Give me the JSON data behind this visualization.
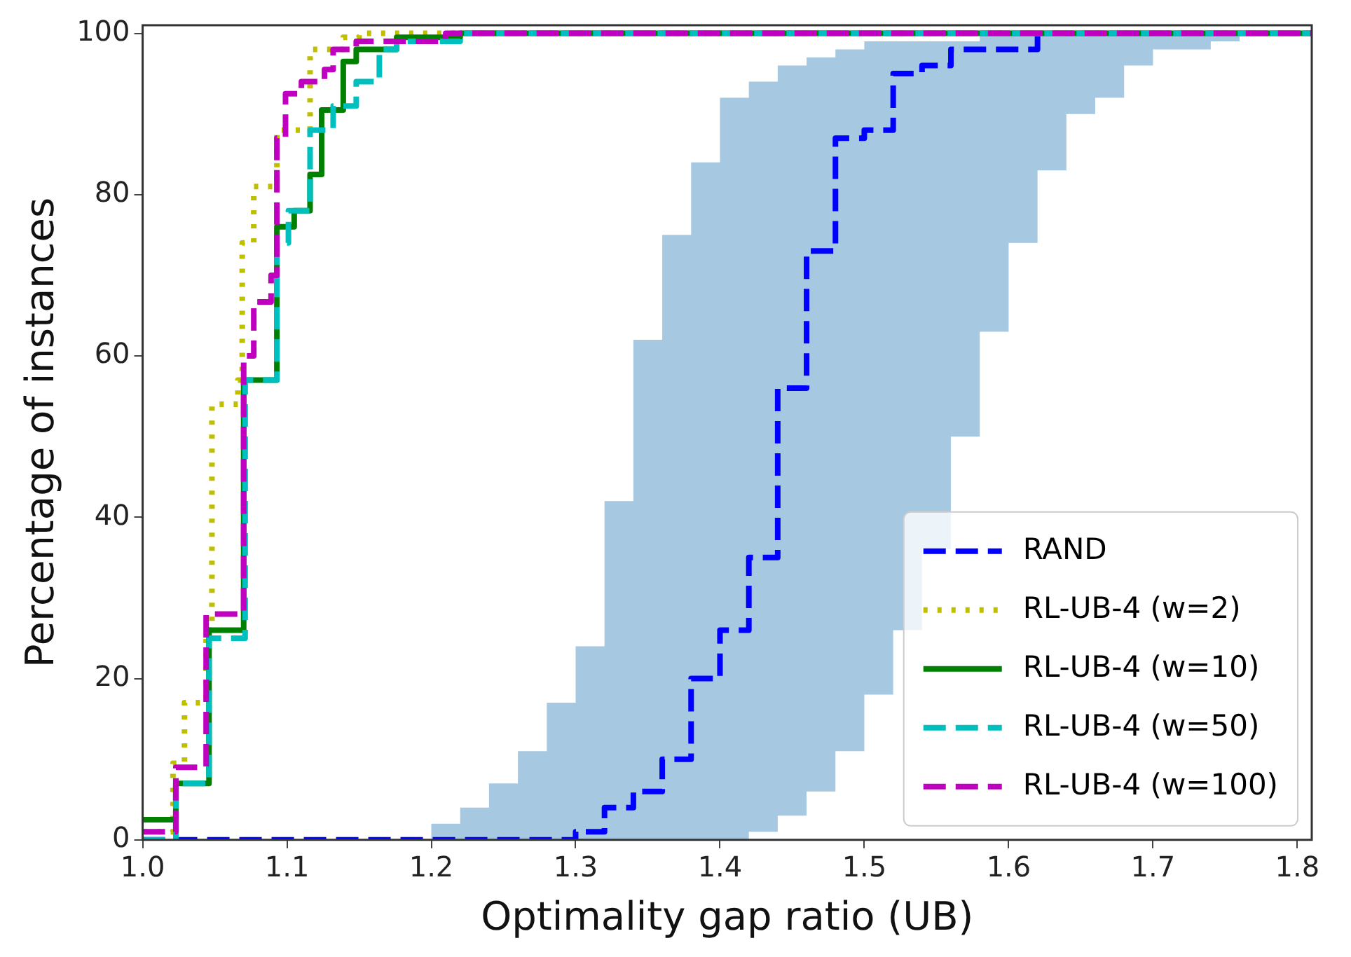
{
  "chart_data": {
    "type": "step",
    "xlabel": "Optimality gap ratio (UB)",
    "ylabel": "Percentage of instances",
    "xlim": [
      1.0,
      1.81
    ],
    "ylim": [
      0,
      101
    ],
    "xticks": [
      {
        "value": 1.0,
        "label": "1.0"
      },
      1.1,
      1.2,
      1.3,
      1.4,
      1.5,
      1.6,
      1.7,
      1.8
    ],
    "yticks": [
      0,
      20,
      40,
      60,
      80,
      100
    ],
    "grid": false,
    "legend": "lower right",
    "series": [
      {
        "name": "RAND",
        "color": "#0000ff",
        "line_style": "dashed",
        "x": [
          1.0,
          1.2,
          1.22,
          1.24,
          1.26,
          1.28,
          1.3,
          1.32,
          1.34,
          1.36,
          1.38,
          1.4,
          1.42,
          1.44,
          1.46,
          1.48,
          1.5,
          1.52,
          1.54,
          1.56,
          1.58,
          1.6,
          1.62,
          1.64,
          1.66,
          1.68,
          1.7,
          1.72,
          1.74,
          1.76,
          1.81
        ],
        "values": [
          0,
          0,
          0,
          0,
          0,
          0,
          1,
          4,
          6,
          10,
          20,
          26,
          35,
          56,
          73,
          87,
          88,
          95,
          96,
          98,
          98,
          98,
          100,
          null,
          null,
          null,
          null,
          null,
          null,
          null,
          null
        ],
        "lower": [
          0,
          0,
          0,
          0,
          0,
          0,
          0,
          0,
          0,
          0,
          0,
          0,
          1,
          3,
          6,
          11,
          18,
          26,
          36,
          50,
          63,
          74,
          83,
          90,
          92,
          96,
          98,
          98,
          99,
          100,
          100
        ],
        "upper": [
          0,
          2,
          4,
          7,
          11,
          17,
          24,
          42,
          62,
          75,
          84,
          92,
          94,
          96,
          97,
          98,
          99,
          99,
          99,
          99,
          100,
          100,
          100,
          100,
          100,
          100,
          100,
          100,
          100,
          100,
          100
        ]
      },
      {
        "name": "RL-UB-4 (w=2)",
        "color": "#bfbf00",
        "line_style": "dotted",
        "x": [
          1.0,
          1.021,
          1.029,
          1.044,
          1.048,
          1.066,
          1.069,
          1.077,
          1.093,
          1.116,
          1.139,
          1.15,
          1.81
        ],
        "values": [
          1,
          9.5,
          17,
          26,
          54,
          57,
          74,
          81,
          88,
          98,
          99.5,
          100,
          100
        ]
      },
      {
        "name": "RL-UB-4 (w=10)",
        "color": "#008000",
        "line_style": "solid",
        "x": [
          1.0,
          1.023,
          1.046,
          1.07,
          1.093,
          1.105,
          1.116,
          1.124,
          1.139,
          1.148,
          1.176,
          1.22,
          1.81
        ],
        "values": [
          2.5,
          7,
          26,
          57,
          76,
          78,
          82.5,
          90.5,
          96.5,
          98,
          99.5,
          100,
          100
        ]
      },
      {
        "name": "RL-UB-4 (w=50)",
        "color": "#00bfbf",
        "line_style": "dashed",
        "x": [
          1.0,
          1.023,
          1.046,
          1.071,
          1.093,
          1.101,
          1.116,
          1.132,
          1.148,
          1.164,
          1.176,
          1.22,
          1.81
        ],
        "values": [
          0,
          7,
          25,
          57,
          74,
          78,
          88,
          91,
          94,
          98,
          99,
          100,
          100
        ]
      },
      {
        "name": "RL-UB-4 (w=100)",
        "color": "#bf00bf",
        "line_style": "dashed",
        "x": [
          1.0,
          1.023,
          1.044,
          1.07,
          1.077,
          1.089,
          1.093,
          1.099,
          1.11,
          1.126,
          1.132,
          1.148,
          1.21,
          1.81
        ],
        "values": [
          1,
          9,
          28,
          60,
          66.7,
          70,
          87,
          92.5,
          94,
          95.5,
          98,
          99,
          100,
          100
        ]
      }
    ]
  }
}
